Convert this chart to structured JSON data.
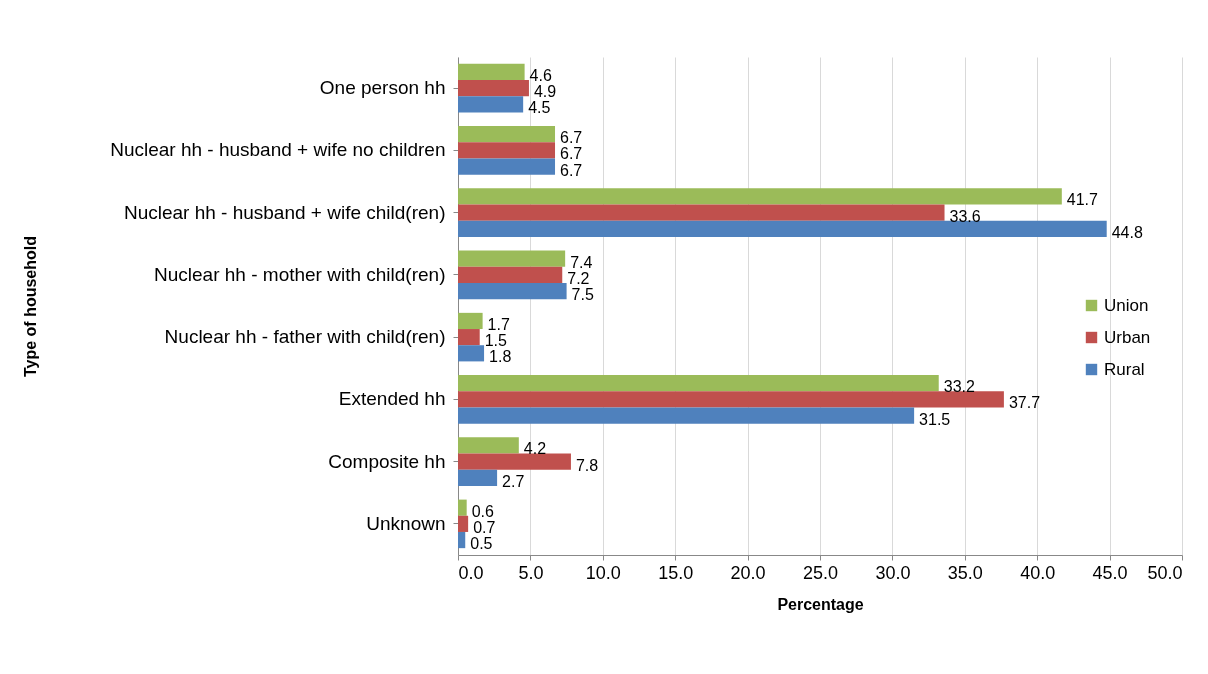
{
  "chart_data": {
    "type": "bar",
    "orientation": "horizontal",
    "xlabel": "Percentage",
    "ylabel": "Type of household",
    "categories": [
      "One person hh",
      "Nuclear hh - husband + wife no children",
      "Nuclear hh - husband + wife child(ren)",
      "Nuclear hh - mother with child(ren)",
      "Nuclear hh - father with child(ren)",
      "Extended hh",
      "Composite hh",
      "Unknown"
    ],
    "series": [
      {
        "name": "Union",
        "color": "#9bbb59",
        "values": [
          4.6,
          6.7,
          41.7,
          7.4,
          1.7,
          33.2,
          4.2,
          0.6
        ]
      },
      {
        "name": "Urban",
        "color": "#c0504d",
        "values": [
          4.9,
          6.7,
          33.6,
          7.2,
          1.5,
          37.7,
          7.8,
          0.7
        ]
      },
      {
        "name": "Rural",
        "color": "#4f81bd",
        "values": [
          4.5,
          6.7,
          44.8,
          7.5,
          1.8,
          31.5,
          2.7,
          0.5
        ]
      }
    ],
    "xlim": [
      0,
      50
    ],
    "xticks": [
      {
        "value": 0,
        "label": "0.0"
      },
      {
        "value": 5,
        "label": "5.0"
      },
      {
        "value": 10,
        "label": "10.0"
      },
      {
        "value": 15,
        "label": "15.0"
      },
      {
        "value": 20,
        "label": "20.0"
      },
      {
        "value": 25,
        "label": "25.0"
      },
      {
        "value": 30,
        "label": "30.0"
      },
      {
        "value": 35,
        "label": "35.0"
      },
      {
        "value": 40,
        "label": "40.0"
      },
      {
        "value": 45,
        "label": "45.0"
      },
      {
        "value": 50,
        "label": "50.0"
      }
    ],
    "grid": "x",
    "legend": "right",
    "data_labels": true
  }
}
